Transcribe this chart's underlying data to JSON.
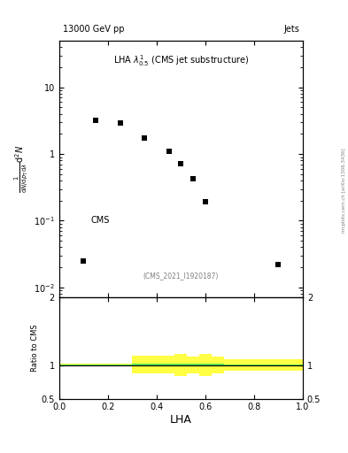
{
  "title_top": "13000 GeV pp",
  "title_right": "Jets",
  "main_label": "LHA $\\lambda^{1}_{0.5}$ (CMS jet substructure)",
  "cms_label": "CMS",
  "watermark": "(CMS_2021_I1920187)",
  "side_label": "mcplots.cern.ch [arXiv:1306.3436]",
  "data_x": [
    0.15,
    0.25,
    0.35,
    0.45,
    0.5,
    0.55,
    0.6,
    0.9
  ],
  "data_y": [
    3.2,
    2.9,
    1.75,
    1.1,
    0.72,
    0.42,
    0.19,
    0.022
  ],
  "cms_point_x": [
    0.1
  ],
  "cms_point_y": [
    0.025
  ],
  "xlabel": "LHA",
  "ylabel_line1": "mathrm d$^2$N",
  "ylabel_line2": "mathrm d N / mathrm d p$_T$ mathrm d lambda",
  "ylabel_ratio": "Ratio to CMS",
  "ylim_main": [
    0.007,
    50
  ],
  "ylim_ratio": [
    0.5,
    2.0
  ],
  "xlim": [
    0.0,
    1.0
  ],
  "ratio_line_y": 1.0,
  "yellow_band_steps": {
    "edges": [
      0.0,
      0.25,
      0.3,
      0.375,
      0.425,
      0.475,
      0.525,
      0.575,
      0.625,
      0.675,
      0.75,
      1.0
    ],
    "low": [
      0.975,
      0.975,
      0.87,
      0.87,
      0.87,
      0.835,
      0.875,
      0.84,
      0.875,
      0.91,
      0.91,
      0.91
    ],
    "high": [
      1.02,
      1.02,
      1.14,
      1.14,
      1.14,
      1.16,
      1.13,
      1.16,
      1.12,
      1.09,
      1.09,
      1.09
    ]
  },
  "green_band_steps": {
    "edges": [
      0.0,
      0.25,
      0.3,
      0.375,
      0.425,
      0.475,
      0.525,
      0.575,
      0.625,
      0.675,
      0.75,
      1.0
    ],
    "low": [
      0.985,
      0.985,
      0.99,
      0.99,
      0.995,
      0.99,
      0.995,
      0.995,
      0.995,
      0.995,
      0.995,
      0.995
    ],
    "high": [
      1.01,
      1.01,
      1.02,
      1.02,
      1.015,
      1.02,
      1.015,
      1.015,
      1.015,
      1.01,
      1.01,
      1.01
    ]
  },
  "marker_color": "black",
  "marker_size": 25,
  "green_color": "#55dd55",
  "yellow_color": "#ffff44",
  "background_color": "white",
  "yticks_main": [
    0.01,
    0.1,
    1,
    10
  ],
  "ytick_labels_main": [
    "$10^{-2}$",
    "$10^{-1}$",
    "1",
    "10"
  ],
  "yticks_ratio": [
    0.5,
    1.0,
    2.0
  ],
  "ytick_labels_ratio": [
    "0.5",
    "1",
    "2"
  ]
}
